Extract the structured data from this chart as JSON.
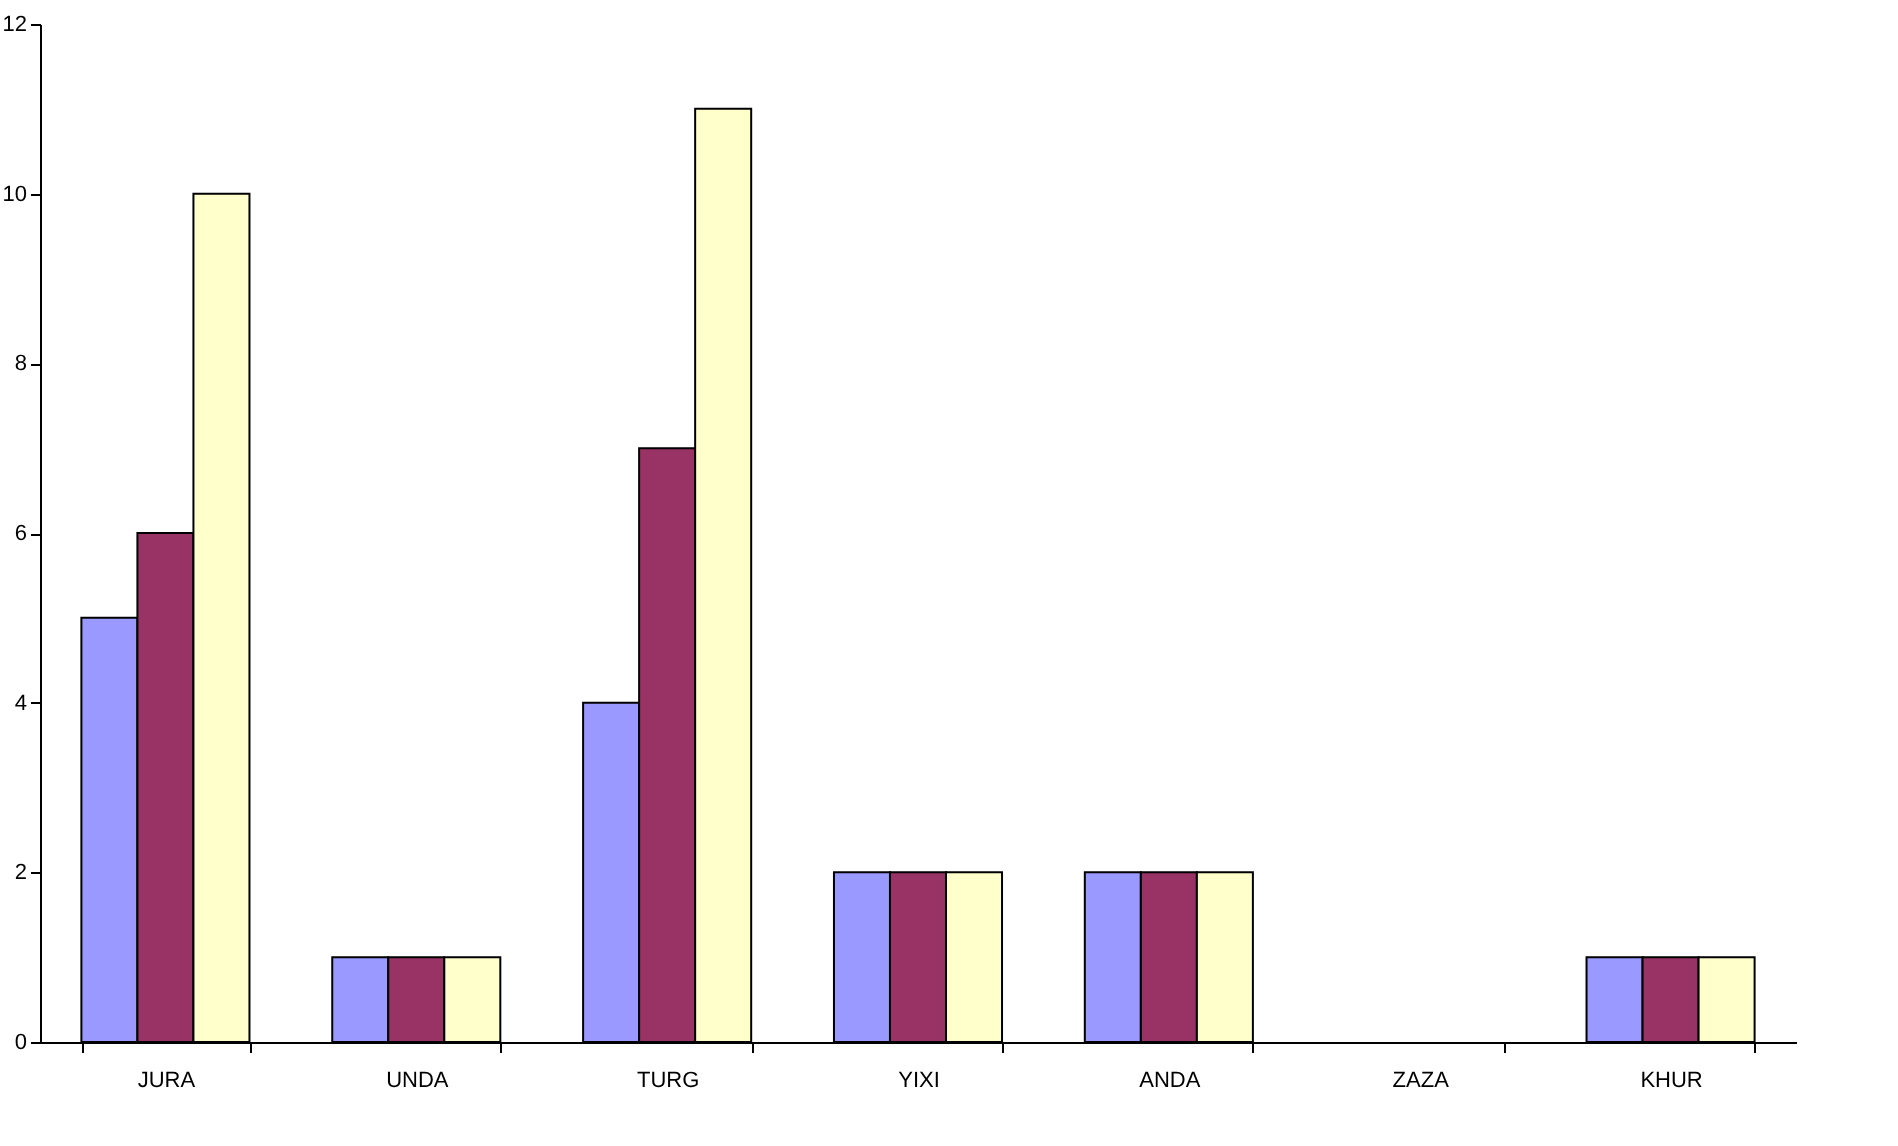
{
  "chart_data": {
    "type": "bar",
    "categories": [
      "JURA",
      "UNDA",
      "TURG",
      "YIXI",
      "ANDA",
      "ZAZA",
      "KHUR"
    ],
    "series": [
      {
        "color": "#9999ff",
        "values": [
          5,
          1,
          4,
          2,
          2,
          0,
          1
        ]
      },
      {
        "color": "#993366",
        "values": [
          6,
          1,
          7,
          2,
          2,
          0,
          1
        ]
      },
      {
        "color": "#ffffcc",
        "values": [
          10,
          1,
          11,
          2,
          2,
          0,
          1
        ]
      }
    ],
    "ylim": [
      0,
      12
    ],
    "yticks": [
      0,
      2,
      4,
      6,
      8,
      10,
      12
    ],
    "grid": false,
    "legend": false
  }
}
